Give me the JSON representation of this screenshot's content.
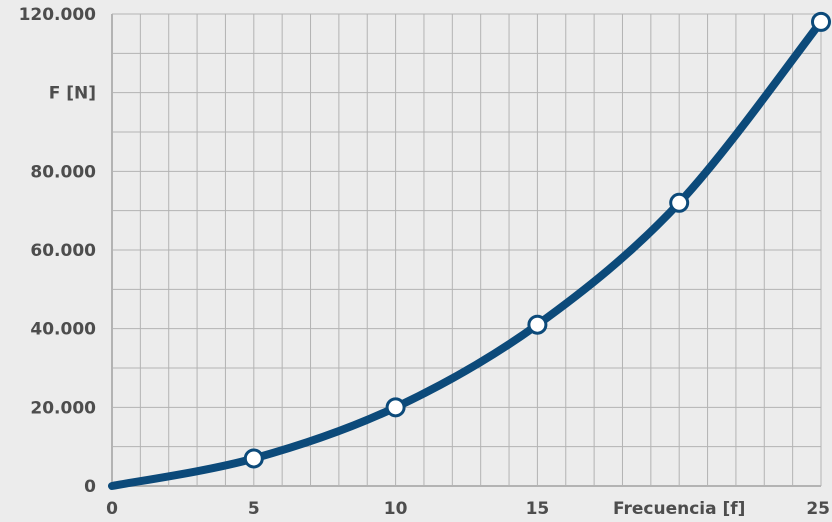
{
  "chart_data": {
    "type": "line",
    "xlabel": "Frecuencia [f]",
    "ylabel": "F [N]",
    "x_ticks": [
      "0",
      "5",
      "10",
      "15",
      "25"
    ],
    "y_ticks": [
      "0",
      "20.000",
      "40.000",
      "60.000",
      "80.000",
      "120.000"
    ],
    "xlim": [
      0,
      25
    ],
    "ylim": [
      0,
      120000
    ],
    "grid": true,
    "series": [
      {
        "color": "#0c4a7a",
        "x": [
          0,
          5,
          10,
          15,
          20,
          25
        ],
        "y": [
          0,
          7000,
          20000,
          41000,
          72000,
          118000
        ]
      }
    ],
    "markers": [
      {
        "x": 5,
        "y": 7000
      },
      {
        "x": 10,
        "y": 20000
      },
      {
        "x": 15,
        "y": 41000
      },
      {
        "x": 20,
        "y": 72000
      },
      {
        "x": 25,
        "y": 118000
      }
    ],
    "colors": {
      "background": "#ececec",
      "grid": "#b3b3b3",
      "axis": "#b3b3b3",
      "line": "#0c4a7a",
      "marker_fill": "#ffffff",
      "text": "#4d4d4d"
    }
  }
}
